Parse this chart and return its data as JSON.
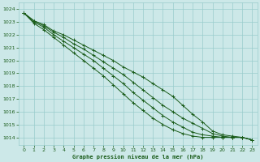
{
  "title": "Graphe pression niveau de la mer (hPa)",
  "background_color": "#cce8e8",
  "grid_color": "#99cccc",
  "line_color": "#1a5c1a",
  "xlim": [
    -0.5,
    23.5
  ],
  "ylim": [
    1013.4,
    1024.5
  ],
  "yticks": [
    1014,
    1015,
    1016,
    1017,
    1018,
    1019,
    1020,
    1021,
    1022,
    1023,
    1024
  ],
  "xticks": [
    0,
    1,
    2,
    3,
    4,
    5,
    6,
    7,
    8,
    9,
    10,
    11,
    12,
    13,
    14,
    15,
    16,
    17,
    18,
    19,
    20,
    21,
    22,
    23
  ],
  "series": [
    [
      1023.7,
      1023.1,
      1022.8,
      1022.3,
      1022.0,
      1021.6,
      1021.2,
      1020.8,
      1020.4,
      1020.0,
      1019.5,
      1019.1,
      1018.7,
      1018.2,
      1017.7,
      1017.2,
      1016.5,
      1015.8,
      1015.2,
      1014.5,
      1014.2,
      1014.1,
      1014.0,
      1013.8
    ],
    [
      1023.7,
      1023.1,
      1022.7,
      1022.2,
      1021.8,
      1021.3,
      1020.9,
      1020.4,
      1019.9,
      1019.4,
      1018.9,
      1018.3,
      1017.7,
      1017.1,
      1016.5,
      1016.0,
      1015.5,
      1015.1,
      1014.7,
      1014.3,
      1014.1,
      1014.0,
      1014.0,
      1013.8
    ],
    [
      1023.7,
      1023.0,
      1022.6,
      1022.0,
      1021.5,
      1021.0,
      1020.5,
      1020.0,
      1019.4,
      1018.8,
      1018.2,
      1017.5,
      1016.9,
      1016.3,
      1015.7,
      1015.2,
      1014.8,
      1014.4,
      1014.2,
      1014.1,
      1014.0,
      1014.0,
      1014.0,
      1013.8
    ],
    [
      1023.7,
      1022.9,
      1022.4,
      1021.8,
      1021.2,
      1020.6,
      1020.0,
      1019.4,
      1018.8,
      1018.1,
      1017.4,
      1016.7,
      1016.1,
      1015.5,
      1015.0,
      1014.6,
      1014.3,
      1014.1,
      1014.0,
      1014.0,
      1014.0,
      1014.0,
      1014.0,
      1013.8
    ]
  ]
}
